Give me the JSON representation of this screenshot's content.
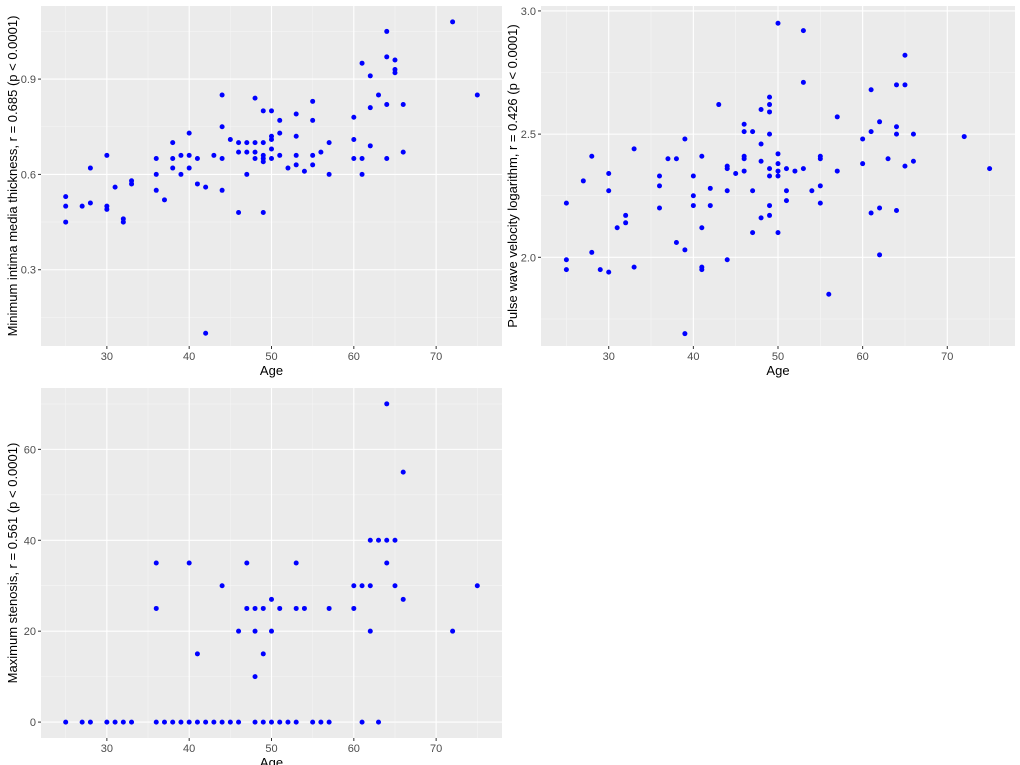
{
  "chart_data": [
    {
      "type": "scatter",
      "xlabel": "Age",
      "ylabel": "Minimum intima media thickness, r = 0.685 (p < 0.0001)",
      "xlim": [
        22,
        78
      ],
      "ylim": [
        0.06,
        1.13
      ],
      "xticks": [
        30,
        40,
        50,
        60,
        70
      ],
      "yticks": [
        0.3,
        0.6,
        0.9
      ],
      "ytick_labels": [
        "0.3",
        "0.6",
        "0.9"
      ],
      "grid": true,
      "point_color": "#0000ff",
      "points": [
        [
          25,
          0.53
        ],
        [
          25,
          0.5
        ],
        [
          25,
          0.45
        ],
        [
          27,
          0.5
        ],
        [
          28,
          0.62
        ],
        [
          28,
          0.51
        ],
        [
          30,
          0.66
        ],
        [
          30,
          0.5
        ],
        [
          30,
          0.49
        ],
        [
          31,
          0.56
        ],
        [
          32,
          0.46
        ],
        [
          32,
          0.45
        ],
        [
          33,
          0.58
        ],
        [
          33,
          0.57
        ],
        [
          36,
          0.65
        ],
        [
          36,
          0.6
        ],
        [
          36,
          0.55
        ],
        [
          37,
          0.52
        ],
        [
          38,
          0.7
        ],
        [
          38,
          0.65
        ],
        [
          38,
          0.62
        ],
        [
          39,
          0.66
        ],
        [
          39,
          0.6
        ],
        [
          40,
          0.73
        ],
        [
          40,
          0.66
        ],
        [
          40,
          0.62
        ],
        [
          41,
          0.65
        ],
        [
          41,
          0.57
        ],
        [
          42,
          0.56
        ],
        [
          42,
          0.1
        ],
        [
          43,
          0.66
        ],
        [
          44,
          0.85
        ],
        [
          44,
          0.75
        ],
        [
          44,
          0.65
        ],
        [
          44,
          0.55
        ],
        [
          45,
          0.71
        ],
        [
          46,
          0.7
        ],
        [
          46,
          0.67
        ],
        [
          46,
          0.48
        ],
        [
          47,
          0.7
        ],
        [
          47,
          0.67
        ],
        [
          47,
          0.6
        ],
        [
          48,
          0.84
        ],
        [
          48,
          0.7
        ],
        [
          48,
          0.67
        ],
        [
          48,
          0.65
        ],
        [
          49,
          0.8
        ],
        [
          49,
          0.7
        ],
        [
          49,
          0.66
        ],
        [
          49,
          0.65
        ],
        [
          49,
          0.64
        ],
        [
          49,
          0.48
        ],
        [
          50,
          0.8
        ],
        [
          50,
          0.72
        ],
        [
          50,
          0.71
        ],
        [
          50,
          0.68
        ],
        [
          50,
          0.65
        ],
        [
          51,
          0.77
        ],
        [
          51,
          0.73
        ],
        [
          51,
          0.66
        ],
        [
          52,
          0.62
        ],
        [
          53,
          0.79
        ],
        [
          53,
          0.72
        ],
        [
          53,
          0.66
        ],
        [
          53,
          0.63
        ],
        [
          54,
          0.61
        ],
        [
          55,
          0.83
        ],
        [
          55,
          0.77
        ],
        [
          55,
          0.66
        ],
        [
          55,
          0.63
        ],
        [
          56,
          0.67
        ],
        [
          57,
          0.7
        ],
        [
          57,
          0.6
        ],
        [
          60,
          0.78
        ],
        [
          60,
          0.71
        ],
        [
          60,
          0.65
        ],
        [
          61,
          0.95
        ],
        [
          61,
          0.65
        ],
        [
          61,
          0.6
        ],
        [
          62,
          0.91
        ],
        [
          62,
          0.81
        ],
        [
          62,
          0.69
        ],
        [
          63,
          0.85
        ],
        [
          64,
          1.05
        ],
        [
          64,
          0.97
        ],
        [
          64,
          0.82
        ],
        [
          64,
          0.65
        ],
        [
          65,
          0.96
        ],
        [
          65,
          0.93
        ],
        [
          65,
          0.92
        ],
        [
          66,
          0.82
        ],
        [
          66,
          0.67
        ],
        [
          72,
          1.08
        ],
        [
          75,
          0.85
        ]
      ]
    },
    {
      "type": "scatter",
      "xlabel": "Age",
      "ylabel": "Pulse wave velocity logarithm, r = 0.426 (p < 0.0001)",
      "xlim": [
        22,
        78
      ],
      "ylim": [
        1.64,
        3.02
      ],
      "xticks": [
        30,
        40,
        50,
        60,
        70
      ],
      "yticks": [
        2.0,
        2.5,
        3.0
      ],
      "ytick_labels": [
        "2.0",
        "2.5",
        "3.0"
      ],
      "grid": true,
      "point_color": "#0000ff",
      "points": [
        [
          25,
          2.22
        ],
        [
          25,
          1.99
        ],
        [
          25,
          1.95
        ],
        [
          27,
          2.31
        ],
        [
          28,
          2.41
        ],
        [
          28,
          2.02
        ],
        [
          29,
          1.95
        ],
        [
          30,
          2.34
        ],
        [
          30,
          2.27
        ],
        [
          30,
          1.94
        ],
        [
          31,
          2.12
        ],
        [
          32,
          2.17
        ],
        [
          32,
          2.14
        ],
        [
          33,
          2.44
        ],
        [
          33,
          1.96
        ],
        [
          36,
          2.33
        ],
        [
          36,
          2.29
        ],
        [
          36,
          2.2
        ],
        [
          37,
          2.4
        ],
        [
          38,
          2.4
        ],
        [
          38,
          2.06
        ],
        [
          39,
          2.48
        ],
        [
          39,
          2.03
        ],
        [
          39,
          1.69
        ],
        [
          40,
          2.33
        ],
        [
          40,
          2.25
        ],
        [
          40,
          2.21
        ],
        [
          41,
          2.41
        ],
        [
          41,
          2.12
        ],
        [
          41,
          1.96
        ],
        [
          41,
          1.95
        ],
        [
          42,
          2.28
        ],
        [
          42,
          2.21
        ],
        [
          43,
          2.62
        ],
        [
          44,
          2.37
        ],
        [
          44,
          2.36
        ],
        [
          44,
          2.27
        ],
        [
          44,
          1.99
        ],
        [
          45,
          2.34
        ],
        [
          46,
          2.54
        ],
        [
          46,
          2.51
        ],
        [
          46,
          2.41
        ],
        [
          46,
          2.4
        ],
        [
          46,
          2.35
        ],
        [
          47,
          2.51
        ],
        [
          47,
          2.27
        ],
        [
          47,
          2.1
        ],
        [
          48,
          2.6
        ],
        [
          48,
          2.46
        ],
        [
          48,
          2.39
        ],
        [
          48,
          2.16
        ],
        [
          49,
          2.65
        ],
        [
          49,
          2.62
        ],
        [
          49,
          2.59
        ],
        [
          49,
          2.5
        ],
        [
          49,
          2.36
        ],
        [
          49,
          2.33
        ],
        [
          49,
          2.21
        ],
        [
          49,
          2.17
        ],
        [
          50,
          2.95
        ],
        [
          50,
          2.42
        ],
        [
          50,
          2.38
        ],
        [
          50,
          2.35
        ],
        [
          50,
          2.33
        ],
        [
          50,
          2.1
        ],
        [
          51,
          2.36
        ],
        [
          51,
          2.27
        ],
        [
          51,
          2.23
        ],
        [
          52,
          2.35
        ],
        [
          53,
          2.92
        ],
        [
          53,
          2.71
        ],
        [
          53,
          2.36
        ],
        [
          54,
          2.27
        ],
        [
          55,
          2.41
        ],
        [
          55,
          2.4
        ],
        [
          55,
          2.29
        ],
        [
          55,
          2.22
        ],
        [
          56,
          1.85
        ],
        [
          57,
          2.57
        ],
        [
          57,
          2.35
        ],
        [
          60,
          2.48
        ],
        [
          60,
          2.38
        ],
        [
          61,
          2.68
        ],
        [
          61,
          2.51
        ],
        [
          61,
          2.18
        ],
        [
          62,
          2.55
        ],
        [
          62,
          2.2
        ],
        [
          62,
          2.01
        ],
        [
          63,
          2.4
        ],
        [
          64,
          2.7
        ],
        [
          64,
          2.53
        ],
        [
          64,
          2.5
        ],
        [
          64,
          2.19
        ],
        [
          65,
          2.82
        ],
        [
          65,
          2.7
        ],
        [
          65,
          2.37
        ],
        [
          66,
          2.5
        ],
        [
          66,
          2.39
        ],
        [
          72,
          2.49
        ],
        [
          75,
          2.36
        ]
      ]
    },
    {
      "type": "scatter",
      "xlabel": "Age",
      "ylabel": "Maximum stenosis, r = 0.561 (p < 0.0001)",
      "xlim": [
        22,
        78
      ],
      "ylim": [
        -3.5,
        73.5
      ],
      "xticks": [
        30,
        40,
        50,
        60,
        70
      ],
      "yticks": [
        0,
        20,
        40,
        60
      ],
      "ytick_labels": [
        "0",
        "20",
        "40",
        "60"
      ],
      "grid": true,
      "point_color": "#0000ff",
      "points": [
        [
          25,
          0
        ],
        [
          27,
          0
        ],
        [
          28,
          0
        ],
        [
          30,
          0
        ],
        [
          31,
          0
        ],
        [
          32,
          0
        ],
        [
          33,
          0
        ],
        [
          36,
          35
        ],
        [
          36,
          25
        ],
        [
          36,
          0
        ],
        [
          37,
          0
        ],
        [
          38,
          0
        ],
        [
          39,
          0
        ],
        [
          40,
          35
        ],
        [
          40,
          0
        ],
        [
          41,
          15
        ],
        [
          41,
          0
        ],
        [
          42,
          0
        ],
        [
          43,
          0
        ],
        [
          44,
          30
        ],
        [
          44,
          0
        ],
        [
          45,
          0
        ],
        [
          46,
          20
        ],
        [
          46,
          0
        ],
        [
          47,
          35
        ],
        [
          47,
          25
        ],
        [
          48,
          25
        ],
        [
          48,
          20
        ],
        [
          48,
          10
        ],
        [
          48,
          0
        ],
        [
          49,
          25
        ],
        [
          49,
          15
        ],
        [
          49,
          0
        ],
        [
          50,
          27
        ],
        [
          50,
          20
        ],
        [
          50,
          0
        ],
        [
          51,
          25
        ],
        [
          51,
          0
        ],
        [
          52,
          0
        ],
        [
          53,
          35
        ],
        [
          53,
          25
        ],
        [
          53,
          0
        ],
        [
          54,
          25
        ],
        [
          55,
          0
        ],
        [
          56,
          0
        ],
        [
          57,
          25
        ],
        [
          57,
          0
        ],
        [
          60,
          30
        ],
        [
          60,
          25
        ],
        [
          61,
          30
        ],
        [
          61,
          0
        ],
        [
          62,
          40
        ],
        [
          62,
          30
        ],
        [
          62,
          20
        ],
        [
          63,
          40
        ],
        [
          63,
          0
        ],
        [
          64,
          70
        ],
        [
          64,
          40
        ],
        [
          64,
          35
        ],
        [
          65,
          40
        ],
        [
          65,
          30
        ],
        [
          66,
          55
        ],
        [
          66,
          27
        ],
        [
          72,
          20
        ],
        [
          75,
          30
        ]
      ]
    }
  ]
}
